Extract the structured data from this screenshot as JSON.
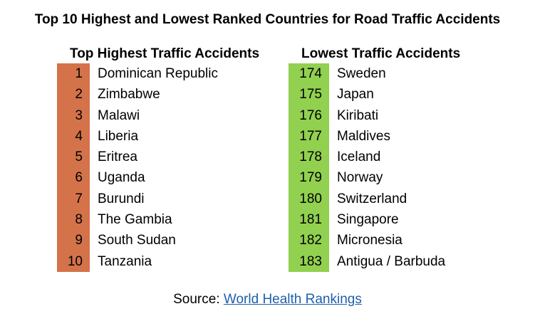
{
  "title": "Top 10 Highest and Lowest Ranked Countries for Road Traffic Accidents",
  "colors": {
    "highest_bar": "#d4734a",
    "lowest_bar": "#92d050",
    "link": "#1f5fad"
  },
  "highest": {
    "header": "Top Highest Traffic Accidents",
    "rows": [
      {
        "rank": "1",
        "country": "Dominican Republic"
      },
      {
        "rank": "2",
        "country": "Zimbabwe"
      },
      {
        "rank": "3",
        "country": "Malawi"
      },
      {
        "rank": "4",
        "country": "Liberia"
      },
      {
        "rank": "5",
        "country": "Eritrea"
      },
      {
        "rank": "6",
        "country": "Uganda"
      },
      {
        "rank": "7",
        "country": "Burundi"
      },
      {
        "rank": "8",
        "country": "The Gambia"
      },
      {
        "rank": "9",
        "country": "South Sudan"
      },
      {
        "rank": "10",
        "country": "Tanzania"
      }
    ]
  },
  "lowest": {
    "header": "Lowest Traffic Accidents",
    "rows": [
      {
        "rank": "174",
        "country": "Sweden"
      },
      {
        "rank": "175",
        "country": "Japan"
      },
      {
        "rank": "176",
        "country": "Kiribati"
      },
      {
        "rank": "177",
        "country": "Maldives"
      },
      {
        "rank": "178",
        "country": "Iceland"
      },
      {
        "rank": "179",
        "country": "Norway"
      },
      {
        "rank": "180",
        "country": "Switzerland"
      },
      {
        "rank": "181",
        "country": "Singapore"
      },
      {
        "rank": "182",
        "country": "Micronesia"
      },
      {
        "rank": "183",
        "country": "Antigua / Barbuda"
      }
    ]
  },
  "source": {
    "label": "Source: ",
    "link_text": "World Health Rankings"
  }
}
